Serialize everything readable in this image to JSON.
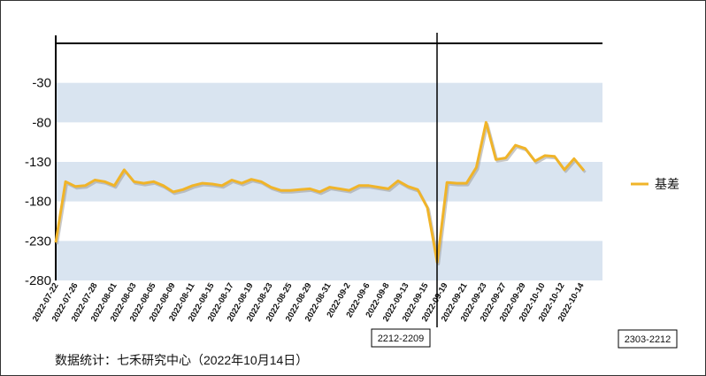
{
  "chart_data": {
    "type": "line",
    "title": "",
    "xlabel": "",
    "ylabel": "",
    "ylim": [
      -280,
      20
    ],
    "y_ticks": [
      -30,
      -80,
      -130,
      -180,
      -230,
      -280
    ],
    "x_tick_labels": [
      "2022-07-22",
      "2022-07-26",
      "2022-07-28",
      "2022-08-01",
      "2022-08-03",
      "2022-08-05",
      "2022-08-09",
      "2022-08-11",
      "2022-08-15",
      "2022-08-17",
      "2022-08-19",
      "2022-08-23",
      "2022-08-25",
      "2022-08-29",
      "2022-08-31",
      "2022-09-2",
      "2022-09-6",
      "2022-09-8",
      "2022-09-13",
      "2022-09-15",
      "2022-09-19",
      "2022-09-21",
      "2022-09-23",
      "2022-09-27",
      "2022-09-29",
      "2022-10-10",
      "2022-10-12",
      "2022-10-14"
    ],
    "series": [
      {
        "name": "基差",
        "color": "#f0b429",
        "values": [
          -232,
          -155,
          -161,
          -160,
          -153,
          -155,
          -160,
          -140,
          -155,
          -157,
          -155,
          -160,
          -168,
          -165,
          -160,
          -157,
          -158,
          -160,
          -153,
          -157,
          -152,
          -155,
          -162,
          -166,
          -166,
          -165,
          -164,
          -168,
          -162,
          -164,
          -166,
          -160,
          -160,
          -162,
          -164,
          -154,
          -161,
          -165,
          -188,
          -257,
          -156,
          -157,
          -157,
          -137,
          -80,
          -127,
          -125,
          -109,
          -113,
          -129,
          -122,
          -123,
          -140,
          -126,
          -141
        ]
      }
    ],
    "grid": "alternating horizontal bands",
    "band_color": "#d9e4f0",
    "legend_position": "right",
    "contract_markers": [
      "2212-2209",
      "2303-2212"
    ]
  },
  "footer_text": "数据统计：七禾研究中心（2022年10月14日）"
}
